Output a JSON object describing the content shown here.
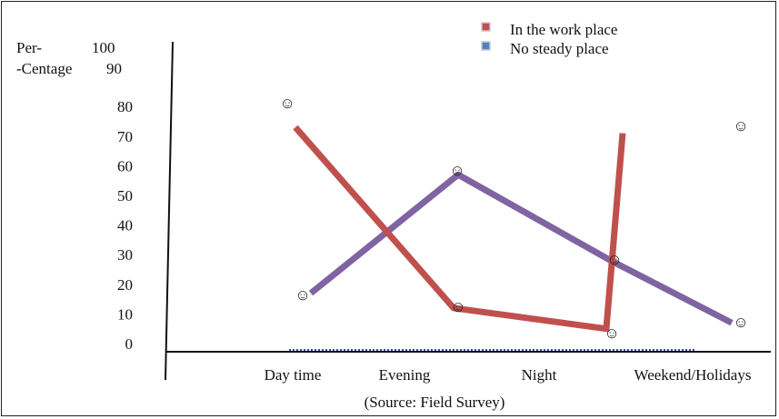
{
  "chart_data": {
    "type": "line",
    "ylabel_line1": "Per-",
    "ylabel_line2": "-Centage",
    "categories": [
      "Day time",
      "Evening",
      "Night",
      "Weekend/Holidays"
    ],
    "yticks": [
      0,
      10,
      20,
      30,
      40,
      50,
      60,
      70,
      80,
      90,
      100
    ],
    "ylim": [
      0,
      100
    ],
    "grid": false,
    "legend_position": "top-right",
    "series": [
      {
        "name": "In the work place",
        "color": "#c0504d",
        "values": [
          73,
          12,
          5,
          71
        ]
      },
      {
        "name": "No steady place",
        "color": "#8064a2",
        "legend_color": "#4f81bd",
        "values": [
          17,
          57,
          28,
          7
        ]
      }
    ],
    "point_marker": "☺",
    "source": "(Source: Field Survey)"
  }
}
